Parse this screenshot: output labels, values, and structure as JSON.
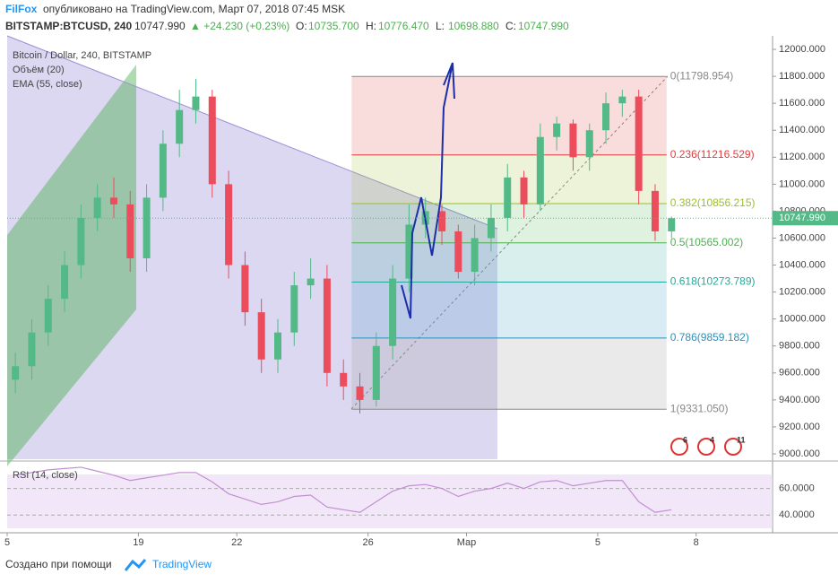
{
  "header": {
    "author": "FilFox",
    "published": "опубликовано на TradingView.com, Март 07, 2018 07:45 MSK",
    "symbol": "BITSTAMP:BTCUSD, 240",
    "last": "10747.990",
    "change": "▲ +24.230 (+0.23%)",
    "ohlc": [
      {
        "key": "O:",
        "val": "10735.700"
      },
      {
        "key": "H:",
        "val": "10776.470"
      },
      {
        "key": "L:",
        "val": "10698.880"
      },
      {
        "key": "C:",
        "val": "10747.990"
      }
    ]
  },
  "legend": [
    "Bitcoin / Dollar, 240, BITSTAMP",
    "Объём (20)",
    "EMA (55, close)"
  ],
  "events": [
    "6",
    "4",
    "11"
  ],
  "footer": {
    "text": "Создано при помощи",
    "brand": "TradingView"
  },
  "chart_data": [
    {
      "type": "candlestick",
      "x": [
        0.25,
        0.75,
        1.25,
        1.75,
        2.25,
        2.75,
        3.25,
        3.75,
        4.25,
        4.75,
        5.25,
        5.75,
        6.25,
        6.75,
        7.25,
        7.75,
        8.25,
        8.75,
        9.25,
        9.75,
        10.25,
        10.75,
        11.25,
        11.75,
        12.25,
        12.75,
        13.25,
        13.75,
        14.25,
        14.75,
        15.25,
        15.75,
        16.25,
        16.75,
        17.25,
        17.75,
        18.25,
        18.75,
        19.25,
        19.75,
        20.25
      ],
      "open": [
        9550,
        9650,
        9900,
        10150,
        10400,
        10750,
        10900,
        10850,
        10450,
        10900,
        11300,
        11550,
        11650,
        11000,
        10400,
        10050,
        9700,
        9900,
        10250,
        10300,
        9600,
        9500,
        9400,
        9800,
        10300,
        10700,
        10800,
        10650,
        10350,
        10600,
        10750,
        11050,
        10850,
        11350,
        11450,
        11200,
        11400,
        11600,
        11650,
        10950,
        10650
      ],
      "high": [
        9750,
        10000,
        10250,
        10500,
        10850,
        11000,
        11050,
        10950,
        11000,
        11400,
        11700,
        11780,
        11700,
        11100,
        10500,
        10150,
        10000,
        10350,
        10450,
        10400,
        9700,
        9600,
        9900,
        10400,
        10850,
        10900,
        10850,
        10700,
        10700,
        10850,
        11150,
        11100,
        11450,
        11500,
        11480,
        11450,
        11680,
        11700,
        11700,
        11000,
        10760
      ],
      "low": [
        9450,
        9550,
        9800,
        10050,
        10300,
        10650,
        10750,
        10350,
        10350,
        10800,
        11200,
        11450,
        10900,
        10300,
        9950,
        9600,
        9600,
        9800,
        10150,
        9500,
        9400,
        9300,
        9350,
        9700,
        10200,
        10600,
        10550,
        10300,
        10250,
        10500,
        10650,
        10750,
        10800,
        11250,
        11100,
        11100,
        11300,
        11500,
        10850,
        10580,
        10600
      ],
      "close": [
        9650,
        9900,
        10150,
        10400,
        10750,
        10900,
        10850,
        10450,
        10900,
        11300,
        11550,
        11650,
        11000,
        10400,
        10050,
        9700,
        9900,
        10250,
        10300,
        9600,
        9500,
        9400,
        9800,
        10300,
        10700,
        10800,
        10650,
        10350,
        10600,
        10750,
        11050,
        10850,
        11350,
        11450,
        11200,
        11400,
        11600,
        11650,
        10950,
        10650,
        10748
      ],
      "up_color": "#53b987",
      "down_color": "#eb4d5c",
      "xlim": [
        0,
        23.33
      ],
      "xticks": [
        {
          "value": 0,
          "label": "5"
        },
        {
          "value": 4,
          "label": "19"
        },
        {
          "value": 7,
          "label": "22"
        },
        {
          "value": 11,
          "label": "26"
        },
        {
          "value": 14,
          "label": "Мар"
        },
        {
          "value": 18,
          "label": "5"
        },
        {
          "value": 21,
          "label": "8"
        }
      ],
      "ylim": [
        8960,
        12100
      ],
      "yticks": [
        {
          "value": 9000,
          "label": "9000.000"
        },
        {
          "value": 9200,
          "label": "9200.000"
        },
        {
          "value": 9400,
          "label": "9400.000"
        },
        {
          "value": 9600,
          "label": "9600.000"
        },
        {
          "value": 9800,
          "label": "9800.000"
        },
        {
          "value": 10000,
          "label": "10000.000"
        },
        {
          "value": 10200,
          "label": "10200.000"
        },
        {
          "value": 10400,
          "label": "10400.000"
        },
        {
          "value": 10600,
          "label": "10600.000"
        },
        {
          "value": 10800,
          "label": "10800.000"
        },
        {
          "value": 11000,
          "label": "11000.000"
        },
        {
          "value": 11200,
          "label": "11200.000"
        },
        {
          "value": 11400,
          "label": "11400.000"
        },
        {
          "value": 11600,
          "label": "11600.000"
        },
        {
          "value": 11800,
          "label": "11800.000"
        },
        {
          "value": 12000,
          "label": "12000.000"
        }
      ],
      "fib_range": [
        10.5,
        20.1
      ],
      "fib": [
        {
          "value": 11798.954,
          "label": "0(11798.954)",
          "color": "#888888"
        },
        {
          "value": 11216.529,
          "label": "0.236(11216.529)",
          "color": "#e03b3b"
        },
        {
          "value": 10856.215,
          "label": "0.382(10856.215)",
          "color": "#9bbf2b"
        },
        {
          "value": 10565.002,
          "label": "0.5(10565.002)",
          "color": "#4caf50"
        },
        {
          "value": 10273.789,
          "label": "0.618(10273.789)",
          "color": "#26a69a"
        },
        {
          "value": 9859.182,
          "label": "0.786(9859.182)",
          "color": "#2a8fbd"
        },
        {
          "value": 9331.05,
          "label": "1(9331.050)",
          "color": "#888888"
        }
      ]
    },
    {
      "type": "line",
      "title": "RSI (14, close)",
      "color": "#c28fd3",
      "values": [
        70,
        72,
        74,
        75,
        76,
        73,
        70,
        66,
        68,
        70,
        72,
        72,
        65,
        56,
        52,
        48,
        50,
        54,
        55,
        46,
        44,
        42,
        50,
        58,
        62,
        63,
        60,
        54,
        58,
        60,
        64,
        60,
        65,
        66,
        62,
        64,
        66,
        66,
        50,
        42,
        44
      ],
      "ylim": [
        28,
        80
      ],
      "yticks": [
        {
          "value": 40,
          "label": "40.0000"
        },
        {
          "value": 60,
          "label": "60.0000"
        }
      ]
    }
  ]
}
